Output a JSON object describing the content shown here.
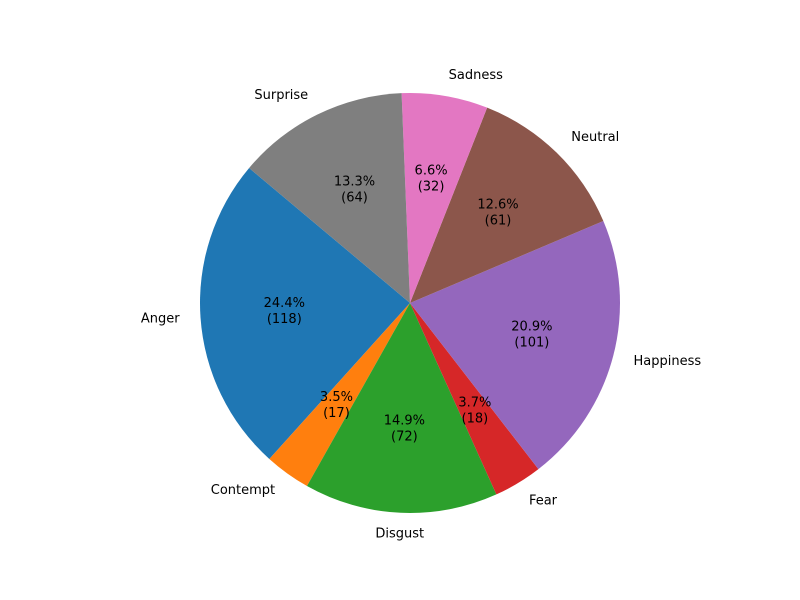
{
  "chart_data": {
    "type": "pie",
    "title": "",
    "start_angle_deg": 140,
    "direction": "counterclockwise",
    "slices": [
      {
        "label": "Anger",
        "value": 118,
        "pct_text": "24.4%",
        "count_text": "(118)",
        "color": "#1f77b4"
      },
      {
        "label": "Contempt",
        "value": 17,
        "pct_text": "3.5%",
        "count_text": "(17)",
        "color": "#ff7f0e"
      },
      {
        "label": "Disgust",
        "value": 72,
        "pct_text": "14.9%",
        "count_text": "(72)",
        "color": "#2ca02c"
      },
      {
        "label": "Fear",
        "value": 18,
        "pct_text": "3.7%",
        "count_text": "(18)",
        "color": "#d62728"
      },
      {
        "label": "Happiness",
        "value": 101,
        "pct_text": "20.9%",
        "count_text": "(101)",
        "color": "#9467bd"
      },
      {
        "label": "Neutral",
        "value": 61,
        "pct_text": "12.6%",
        "count_text": "(61)",
        "color": "#8c564b"
      },
      {
        "label": "Sadness",
        "value": 32,
        "pct_text": "6.6%",
        "count_text": "(32)",
        "color": "#e377c2"
      },
      {
        "label": "Surprise",
        "value": 64,
        "pct_text": "13.3%",
        "count_text": "(64)",
        "color": "#7f7f7f"
      }
    ]
  }
}
